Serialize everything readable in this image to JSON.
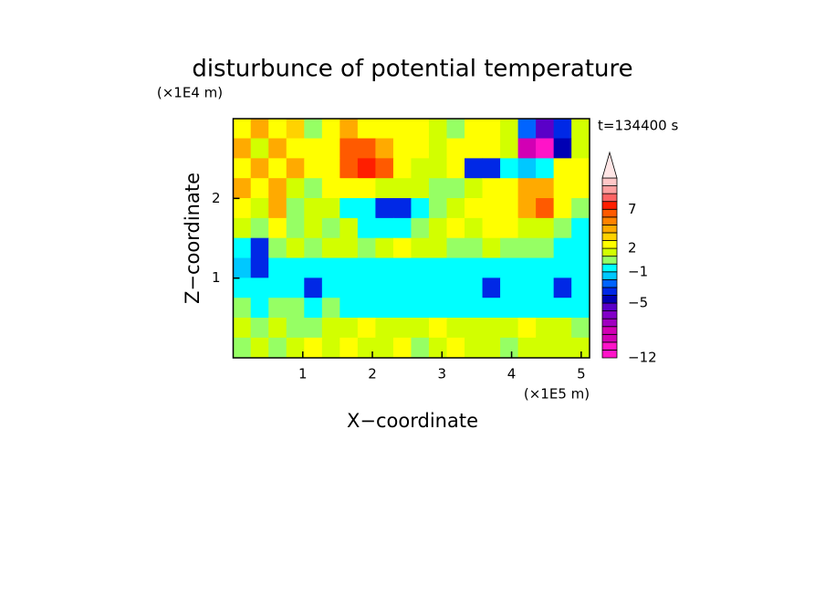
{
  "chart_data": {
    "type": "contour",
    "title": "disturbunce of potential temperature",
    "y_unit": "(×1E4 m)",
    "x_unit": "(×1E5 m)",
    "x_label": "X−coordinate",
    "y_label": "Z−coordinate",
    "annotation": "t=134400 s",
    "xlim": [
      0,
      5.12
    ],
    "ylim": [
      0,
      3
    ],
    "xticks": [
      1,
      2,
      3,
      4,
      5
    ],
    "yticks": [
      1,
      2
    ],
    "x": [
      0.128,
      0.384,
      0.64,
      0.896,
      1.152,
      1.408,
      1.664,
      1.92,
      2.176,
      2.432,
      2.688,
      2.944,
      3.2,
      3.456,
      3.712,
      3.968,
      4.224,
      4.48,
      4.736,
      4.992
    ],
    "y": [
      2.875,
      2.625,
      2.375,
      2.125,
      1.875,
      1.625,
      1.375,
      1.125,
      0.875,
      0.625,
      0.375,
      0.125
    ],
    "values": [
      [
        2,
        4,
        2,
        3,
        0.5,
        2.5,
        4,
        2,
        2.5,
        2.5,
        2.5,
        1.5,
        0.5,
        2.5,
        2.5,
        1.5,
        -2.5,
        -5.5,
        -4,
        1.5
      ],
      [
        4,
        1.5,
        4,
        2.5,
        2.5,
        2.5,
        6,
        6,
        4,
        2.5,
        2.5,
        1.5,
        2.5,
        2.5,
        2.5,
        1.5,
        -9,
        -11,
        -5,
        1.5
      ],
      [
        2.5,
        4,
        2,
        4,
        2.5,
        2.5,
        6,
        7.5,
        6,
        2.5,
        1.5,
        1.5,
        2.5,
        -3.5,
        -4,
        -0.5,
        -1.5,
        -0.5,
        2.5,
        2.5
      ],
      [
        4,
        2,
        4,
        1.5,
        0.5,
        2.5,
        2.5,
        2.5,
        1.5,
        1.5,
        1.5,
        0.5,
        0.5,
        1.5,
        2.5,
        2.5,
        4,
        4,
        2.5,
        2.5
      ],
      [
        2.5,
        1.5,
        4,
        0.5,
        1.5,
        1.5,
        -0.5,
        -0.5,
        -4,
        -3.5,
        -0.5,
        0.5,
        1.5,
        2.5,
        2.5,
        2.5,
        4,
        6,
        2.5,
        0.5
      ],
      [
        1.5,
        0.5,
        2.5,
        0.5,
        1.5,
        0.5,
        1.5,
        -0.5,
        -0.5,
        -0.5,
        0.5,
        1.5,
        2.5,
        1.5,
        2.5,
        2.5,
        1.5,
        1.5,
        0.5,
        -0.5
      ],
      [
        -0.5,
        -3.5,
        0.5,
        1.5,
        0.5,
        1.5,
        1.5,
        0.5,
        1.5,
        2.5,
        1.5,
        1.5,
        0.5,
        0.5,
        1.5,
        0.5,
        0.5,
        0.5,
        -0.5,
        -0.5
      ],
      [
        -1.5,
        -3.5,
        -0.5,
        -0.5,
        -0.5,
        -0.5,
        -0.5,
        -0.5,
        -0.5,
        -0.5,
        -0.5,
        -0.5,
        -0.5,
        -0.5,
        -0.5,
        -0.5,
        -0.5,
        -0.5,
        -0.5,
        -0.5
      ],
      [
        -0.5,
        -0.5,
        -0.5,
        -0.5,
        -3.5,
        -0.5,
        -0.5,
        -0.5,
        -0.5,
        -0.5,
        -0.5,
        -0.5,
        -0.5,
        -0.5,
        -3.5,
        -0.5,
        -0.5,
        -0.5,
        -3.5,
        -0.5
      ],
      [
        0.5,
        -0.5,
        0.5,
        0.5,
        -0.5,
        0.5,
        -0.5,
        -0.5,
        -0.5,
        -0.5,
        -0.5,
        -0.5,
        -0.5,
        -0.5,
        -0.5,
        -0.5,
        -0.5,
        -0.5,
        -0.5,
        -0.5
      ],
      [
        1.5,
        0.5,
        1.5,
        0.5,
        0.5,
        1.5,
        1.5,
        2.5,
        1.5,
        1.5,
        1.5,
        2.5,
        1.5,
        1.5,
        1.5,
        1.5,
        2.5,
        1.5,
        1.5,
        0.5
      ],
      [
        0.5,
        1.5,
        0.5,
        1.5,
        2.5,
        1.5,
        2.5,
        1.5,
        1.5,
        2.5,
        0.5,
        1.5,
        2.5,
        1.5,
        1.5,
        0.5,
        1.5,
        1.5,
        1.5,
        1.5
      ]
    ],
    "levels": [
      -12,
      -11,
      -10,
      -9,
      -8,
      -7,
      -6,
      -5,
      -4,
      -3,
      -2,
      -1,
      0,
      1,
      2,
      3,
      4,
      5,
      6,
      7,
      8,
      9,
      10,
      11
    ],
    "colors": [
      "#ff14c8",
      "#ff14c8",
      "#d200b4",
      "#d200b4",
      "#a000c0",
      "#8200c8",
      "#5a00c8",
      "#0000b4",
      "#0028e6",
      "#0064ff",
      "#00c8ff",
      "#00ffff",
      "#96ff64",
      "#d2ff00",
      "#ffff00",
      "#ffd200",
      "#ffaa00",
      "#ff8200",
      "#ff5a00",
      "#ff1e00",
      "#ff6464",
      "#ffa0a0",
      "#ffc8c8"
    ],
    "extend_color": "#ffe6e6",
    "cbar_ticks": [
      {
        "value": -12,
        "label": "−12"
      },
      {
        "value": -5,
        "label": "−5"
      },
      {
        "value": -1,
        "label": "−1"
      },
      2,
      7
    ]
  }
}
